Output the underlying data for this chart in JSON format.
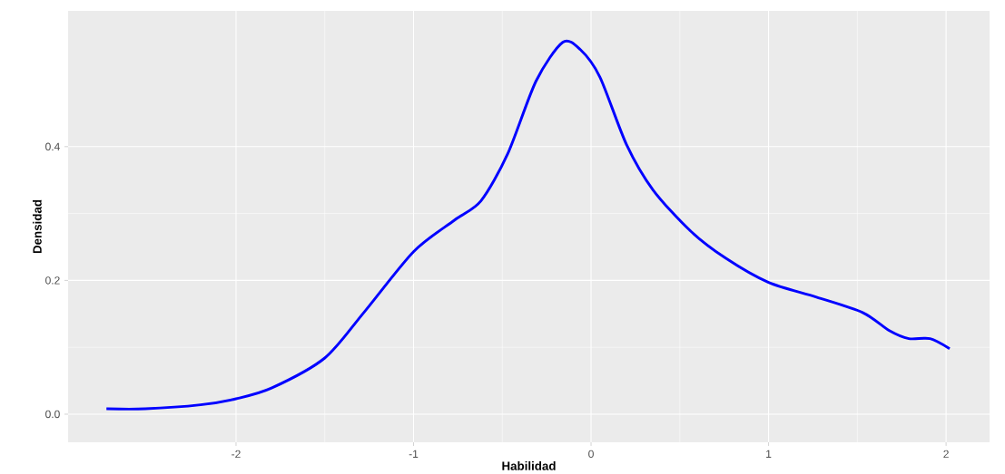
{
  "chart_data": {
    "type": "line",
    "xlabel": "Habilidad",
    "ylabel": "Densidad",
    "x": [
      -2.73,
      -2.51,
      -2.2,
      -2.0,
      -1.8,
      -1.5,
      -1.28,
      -1.0,
      -0.77,
      -0.62,
      -0.47,
      -0.31,
      -0.16,
      -0.06,
      0.05,
      0.2,
      0.35,
      0.56,
      0.76,
      1.0,
      1.27,
      1.53,
      1.68,
      1.79,
      1.91,
      2.02
    ],
    "series": [
      {
        "color": "#0000ff",
        "values": [
          0.008,
          0.008,
          0.014,
          0.023,
          0.039,
          0.084,
          0.152,
          0.243,
          0.29,
          0.319,
          0.389,
          0.498,
          0.556,
          0.545,
          0.504,
          0.403,
          0.335,
          0.274,
          0.233,
          0.197,
          0.175,
          0.152,
          0.125,
          0.113,
          0.113,
          0.098
        ]
      }
    ],
    "xlim": [
      -2.946,
      2.245
    ],
    "ylim": [
      -0.042,
      0.603
    ],
    "xticks": [
      {
        "value": -2,
        "label": "-2"
      },
      {
        "value": -1,
        "label": "-1"
      },
      0,
      1,
      2
    ],
    "yticks": [
      {
        "value": 0,
        "label": "0.0"
      },
      {
        "value": 0.2,
        "label": "0.2"
      },
      {
        "value": 0.4,
        "label": "0.4"
      }
    ],
    "grid": true,
    "marker": "none",
    "line_style": "solid"
  }
}
